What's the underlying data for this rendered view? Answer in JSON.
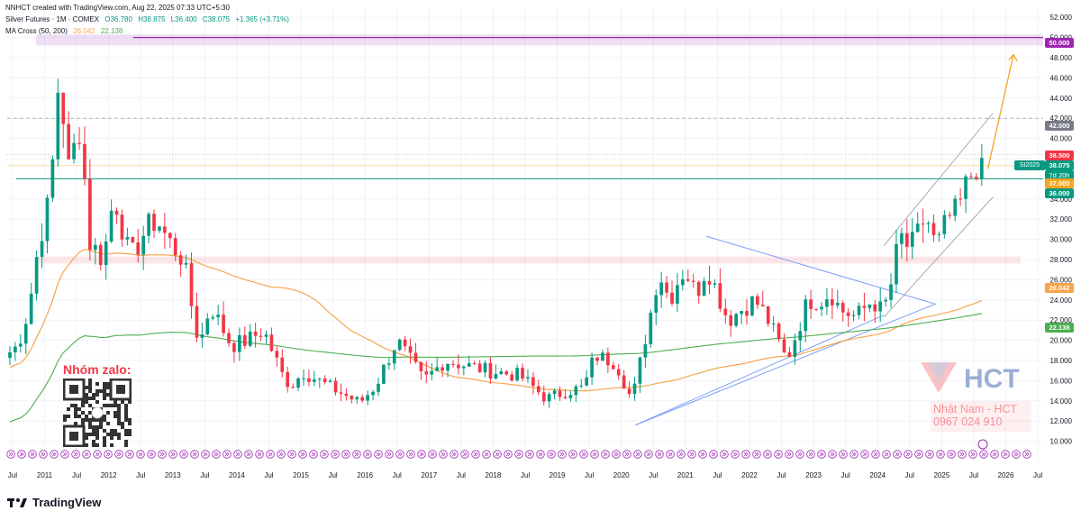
{
  "header": {
    "creator_line": "NNHCT created with TradingView.com, Aug 22, 2025 07:33 UTC+5:30",
    "symbol": "Silver Futures · 1M · COMEX",
    "open": "O36.780",
    "high": "H38.875",
    "low": "L36.400",
    "close": "C38.075",
    "change": "+1.365 (+3.71%)",
    "indicator": "MA Cross (50, 200)",
    "ma50_value": "26.042",
    "ma200_value": "22.138"
  },
  "price_labels": {
    "level_50": "50.000",
    "level_42": "42.000",
    "level_38_5": "38.500",
    "level_38_075": "38.075",
    "countdown": "7d 20h",
    "level_37": "37.000",
    "level_36": "36.000",
    "ma50": "26.042",
    "ma200": "22.138",
    "contract": "SI2025"
  },
  "watermark": {
    "zalo": "Nhóm zalo:",
    "company": "HCT",
    "name_line": "Nhật Nam - HCT",
    "phone_line": "0967 024 910"
  },
  "footer": {
    "brand": "TradingView"
  },
  "colors": {
    "up": "#089981",
    "down": "#f23645",
    "ma50": "#f7a54d",
    "ma200": "#4caf50",
    "triangle": "#7b9cf7",
    "target_arrow": "#f5a623",
    "level_50": "#9c27b0",
    "level_36": "#089981"
  },
  "chart_data": {
    "type": "candlestick",
    "title": "Silver Futures · 1M · COMEX",
    "ylim": [
      8,
      53
    ],
    "yticks": [
      "52.000",
      "50.000",
      "48.000",
      "46.000",
      "44.000",
      "42.000",
      "40.000",
      "38.000",
      "36.000",
      "34.000",
      "32.000",
      "30.000",
      "28.000",
      "26.000",
      "24.000",
      "22.000",
      "20.000",
      "18.000",
      "16.000",
      "14.000",
      "12.000",
      "10.000"
    ],
    "xticks": [
      "Jul",
      "2011",
      "Jul",
      "2012",
      "Jul",
      "2013",
      "Jul",
      "2014",
      "Jul",
      "2015",
      "Jul",
      "2016",
      "Jul",
      "2017",
      "Jul",
      "2018",
      "Jul",
      "2019",
      "Jul",
      "2020",
      "Jul",
      "2021",
      "Jul",
      "2022",
      "Jul",
      "2023",
      "Jul",
      "2024",
      "Jul",
      "2025",
      "Jul",
      "2026",
      "Jul"
    ],
    "close_path": [
      [
        "2010-06",
        18.6
      ],
      [
        "2010-08",
        19.5
      ],
      [
        "2010-10",
        23
      ],
      [
        "2010-12",
        30
      ],
      [
        "2011-02",
        34
      ],
      [
        "2011-04",
        48.5
      ],
      [
        "2011-05",
        36
      ],
      [
        "2011-07",
        40
      ],
      [
        "2011-08",
        42
      ],
      [
        "2011-09",
        30
      ],
      [
        "2011-12",
        28
      ],
      [
        "2012-02",
        34.5
      ],
      [
        "2012-05",
        28
      ],
      [
        "2012-08",
        31
      ],
      [
        "2012-10",
        32
      ],
      [
        "2012-12",
        30
      ],
      [
        "2013-03",
        28
      ],
      [
        "2013-05",
        22
      ],
      [
        "2013-06",
        19.5
      ],
      [
        "2013-08",
        23.5
      ],
      [
        "2013-12",
        19.5
      ],
      [
        "2014-03",
        20
      ],
      [
        "2014-06",
        21
      ],
      [
        "2014-10",
        16
      ],
      [
        "2014-12",
        15.6
      ],
      [
        "2015-01",
        17
      ],
      [
        "2015-06",
        15.5
      ],
      [
        "2015-12",
        13.8
      ],
      [
        "2016-03",
        15.5
      ],
      [
        "2016-07",
        20
      ],
      [
        "2016-12",
        16
      ],
      [
        "2017-04",
        18
      ],
      [
        "2017-12",
        17
      ],
      [
        "2018-06",
        16.5
      ],
      [
        "2018-11",
        14.2
      ],
      [
        "2019-03",
        15
      ],
      [
        "2019-06",
        15.3
      ],
      [
        "2019-08",
        18.5
      ],
      [
        "2019-12",
        17.8
      ],
      [
        "2020-03",
        14
      ],
      [
        "2020-07",
        24
      ],
      [
        "2020-08",
        27
      ],
      [
        "2020-10",
        24
      ],
      [
        "2020-12",
        26.4
      ],
      [
        "2021-01",
        27
      ],
      [
        "2021-03",
        24.5
      ],
      [
        "2021-05",
        27.4
      ],
      [
        "2021-09",
        22
      ],
      [
        "2021-12",
        23.3
      ],
      [
        "2022-02",
        24
      ],
      [
        "2022-04",
        22.5
      ],
      [
        "2022-06",
        20.3
      ],
      [
        "2022-08",
        18
      ],
      [
        "2022-12",
        24
      ],
      [
        "2023-03",
        24
      ],
      [
        "2023-04",
        25
      ],
      [
        "2023-06",
        23
      ],
      [
        "2023-09",
        22.3
      ],
      [
        "2023-12",
        24
      ],
      [
        "2024-02",
        22.7
      ],
      [
        "2024-04",
        26.5
      ],
      [
        "2024-05",
        30.5
      ],
      [
        "2024-07",
        29
      ],
      [
        "2024-09",
        31
      ],
      [
        "2024-10",
        32.5
      ],
      [
        "2024-12",
        29
      ],
      [
        "2025-02",
        32
      ],
      [
        "2025-04",
        32.8
      ],
      [
        "2025-06",
        36
      ],
      [
        "2025-07",
        36.8
      ],
      [
        "2025-08",
        38.075
      ]
    ],
    "series": [
      {
        "name": "MA 50",
        "last_value": 26.042
      },
      {
        "name": "MA 200",
        "last_value": 22.138
      }
    ],
    "horizontal_levels": [
      50,
      42,
      38.5,
      37,
      36,
      28
    ],
    "last_price": 38.075
  }
}
